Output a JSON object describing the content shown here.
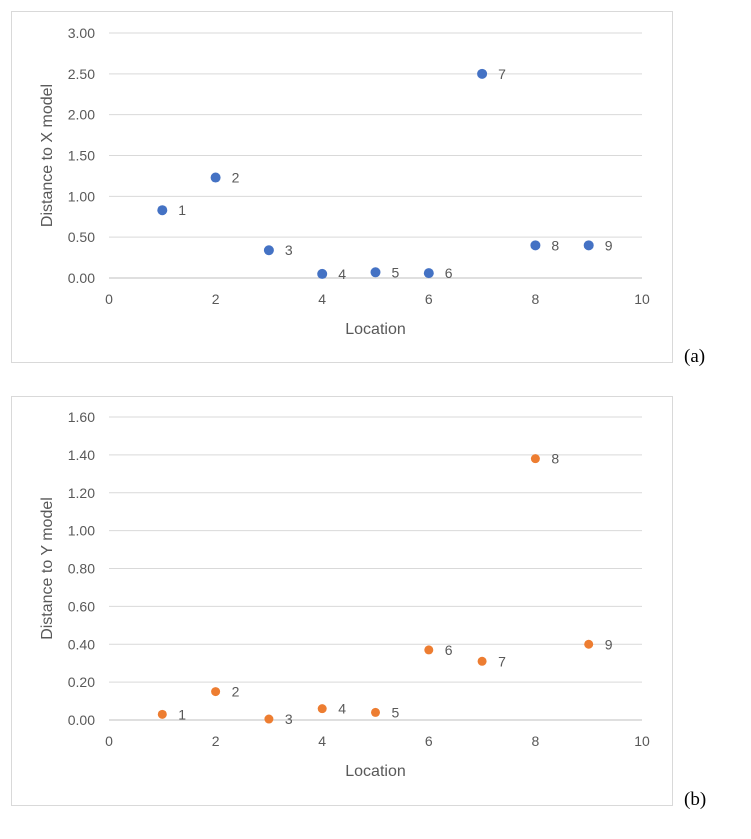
{
  "panel_labels": [
    "(a)",
    "(b)"
  ],
  "chart_data": [
    {
      "type": "scatter",
      "xlabel": "Location",
      "ylabel": "Distance to X model",
      "xlim": [
        0,
        10
      ],
      "ylim": [
        0,
        3.0
      ],
      "x_ticks": [
        "0",
        "2",
        "4",
        "6",
        "8",
        "10"
      ],
      "y_ticks": [
        "0.00",
        "0.50",
        "1.00",
        "1.50",
        "2.00",
        "2.50",
        "3.00"
      ],
      "grid": "horizontal",
      "color": "#4472C4",
      "points": [
        {
          "x": 1,
          "y": 0.83,
          "label": "1"
        },
        {
          "x": 2,
          "y": 1.23,
          "label": "2"
        },
        {
          "x": 3,
          "y": 0.34,
          "label": "3"
        },
        {
          "x": 4,
          "y": 0.05,
          "label": "4"
        },
        {
          "x": 5,
          "y": 0.07,
          "label": "5"
        },
        {
          "x": 6,
          "y": 0.06,
          "label": "6"
        },
        {
          "x": 7,
          "y": 2.5,
          "label": "7"
        },
        {
          "x": 8,
          "y": 0.4,
          "label": "8"
        },
        {
          "x": 9,
          "y": 0.4,
          "label": "9"
        }
      ]
    },
    {
      "type": "scatter",
      "xlabel": "Location",
      "ylabel": "Distance to Y model",
      "xlim": [
        0,
        10
      ],
      "ylim": [
        0,
        1.6
      ],
      "x_ticks": [
        "0",
        "2",
        "4",
        "6",
        "8",
        "10"
      ],
      "y_ticks": [
        "0.00",
        "0.20",
        "0.40",
        "0.60",
        "0.80",
        "1.00",
        "1.20",
        "1.40",
        "1.60"
      ],
      "grid": "horizontal",
      "color": "#ED7D31",
      "points": [
        {
          "x": 1,
          "y": 0.03,
          "label": "1"
        },
        {
          "x": 2,
          "y": 0.15,
          "label": "2"
        },
        {
          "x": 3,
          "y": 0.005,
          "label": "3"
        },
        {
          "x": 4,
          "y": 0.06,
          "label": "4"
        },
        {
          "x": 5,
          "y": 0.04,
          "label": "5"
        },
        {
          "x": 6,
          "y": 0.37,
          "label": "6"
        },
        {
          "x": 7,
          "y": 0.31,
          "label": "7"
        },
        {
          "x": 8,
          "y": 1.38,
          "label": "8"
        },
        {
          "x": 9,
          "y": 0.4,
          "label": "9"
        }
      ]
    }
  ]
}
